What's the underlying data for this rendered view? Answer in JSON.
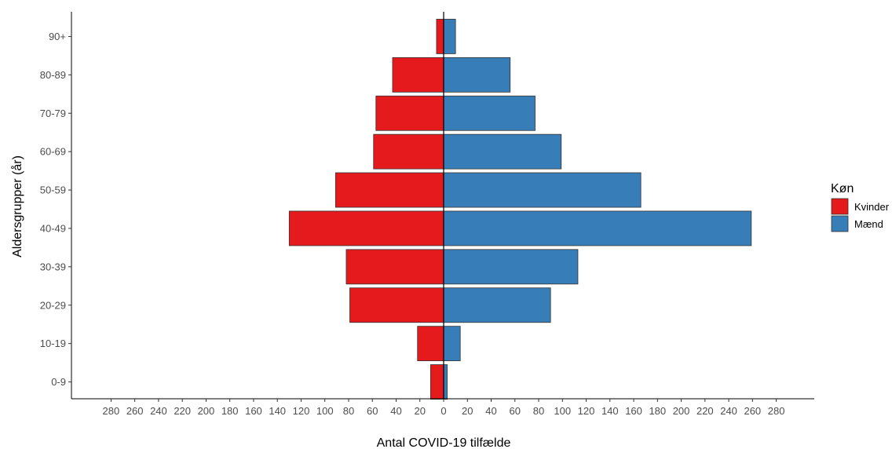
{
  "chart_data": {
    "type": "bar",
    "orientation": "horizontal-population-pyramid",
    "categories": [
      "0-9",
      "10-19",
      "20-29",
      "30-39",
      "40-49",
      "50-59",
      "60-69",
      "70-79",
      "80-89",
      "90+"
    ],
    "series": [
      {
        "name": "Kvinder",
        "color": "#e41a1c",
        "direction": "left",
        "values": [
          11,
          22,
          79,
          82,
          130,
          91,
          59,
          57,
          43,
          6
        ]
      },
      {
        "name": "Mænd",
        "color": "#377eb8",
        "direction": "right",
        "values": [
          3,
          14,
          90,
          113,
          259,
          166,
          99,
          77,
          56,
          10
        ]
      }
    ],
    "xlabel": "Antal COVID-19 tilfælde",
    "ylabel": "Aldersgrupper (år)",
    "xticks": [
      -280,
      -260,
      -240,
      -220,
      -200,
      -180,
      -160,
      -140,
      -120,
      -100,
      -80,
      -60,
      -40,
      -20,
      0,
      20,
      40,
      60,
      80,
      100,
      120,
      140,
      160,
      180,
      200,
      220,
      240,
      260,
      280
    ],
    "xtick_labels": [
      "280",
      "260",
      "240",
      "220",
      "200",
      "180",
      "160",
      "140",
      "120",
      "100",
      "80",
      "60",
      "40",
      "20",
      "0",
      "20",
      "40",
      "60",
      "80",
      "100",
      "120",
      "140",
      "160",
      "180",
      "200",
      "220",
      "240",
      "260",
      "280"
    ],
    "xlim": [
      -312,
      312
    ],
    "legend": {
      "title": "Køn",
      "position": "right"
    },
    "grid": false
  }
}
